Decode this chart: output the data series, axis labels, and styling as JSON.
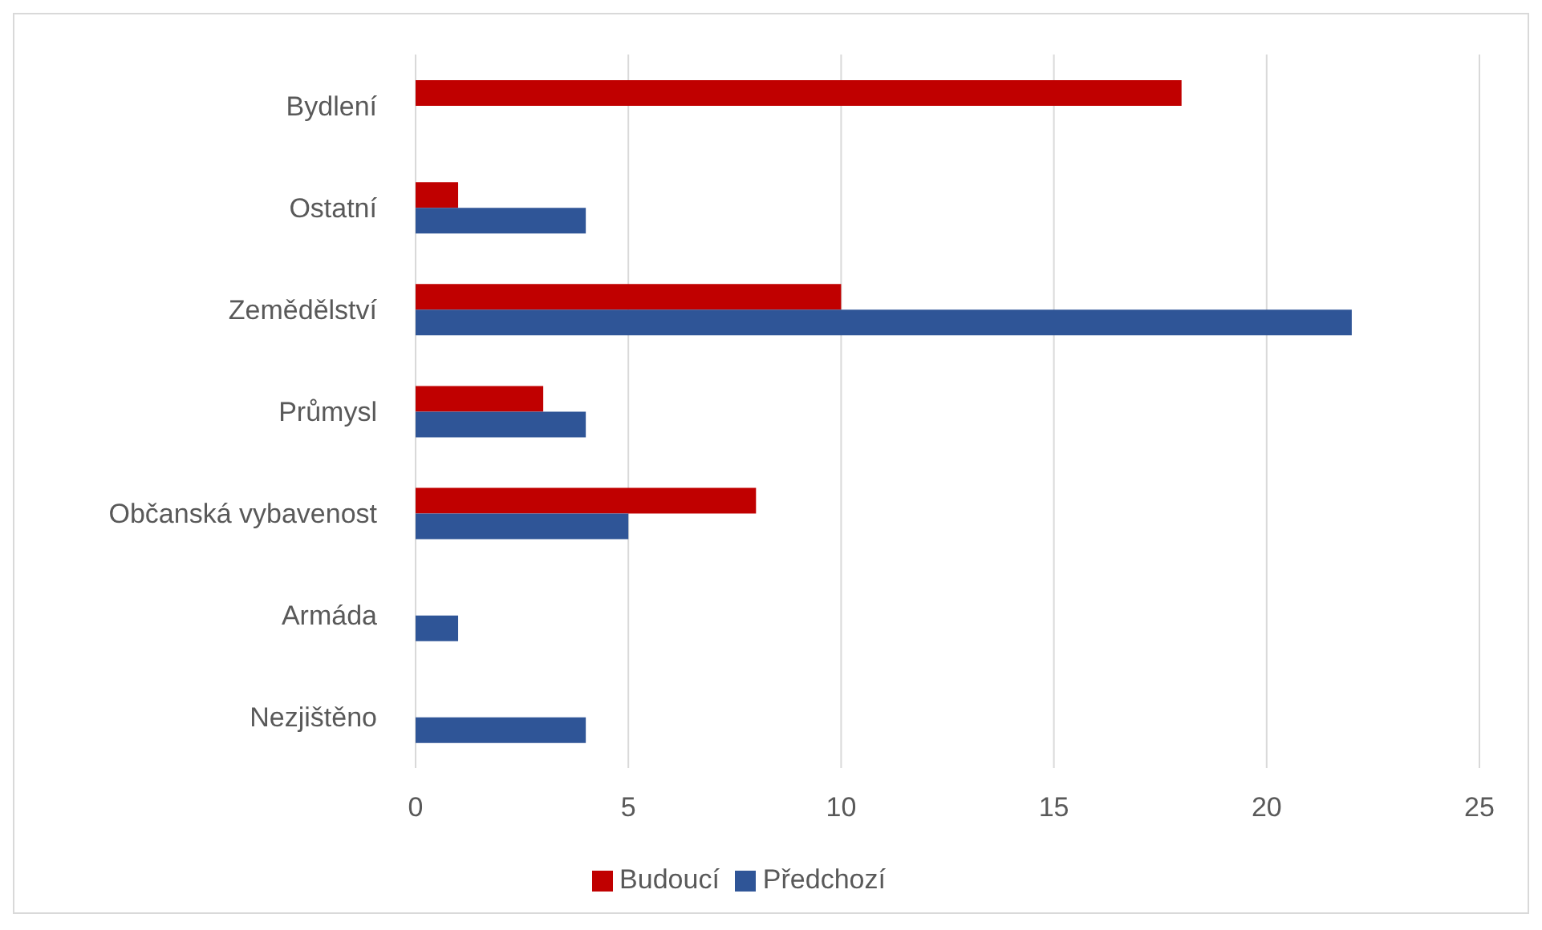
{
  "chart_data": {
    "type": "bar",
    "orientation": "horizontal",
    "categories": [
      "Bydlení",
      "Ostatní",
      "Zemědělství",
      "Průmysl",
      "Občanská vybavenost",
      "Armáda",
      "Nezjištěno"
    ],
    "series": [
      {
        "name": "Budoucí",
        "color": "#c00000",
        "values": [
          18,
          1,
          10,
          3,
          8,
          null,
          null
        ]
      },
      {
        "name": "Předchozí",
        "color": "#2f5597",
        "values": [
          null,
          4,
          22,
          4,
          5,
          1,
          4
        ]
      }
    ],
    "xlim": [
      0,
      25
    ],
    "xticks": [
      0,
      5,
      10,
      15,
      20,
      25
    ],
    "grid": "x",
    "legend": "bottom"
  }
}
